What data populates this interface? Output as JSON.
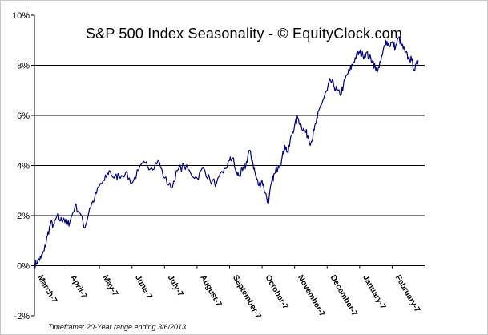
{
  "chart_data": {
    "type": "line",
    "title": "S&P 500 Index Seasonality - © EquityClock.com",
    "xlabel": "",
    "ylabel": "",
    "ylim": [
      -2,
      10
    ],
    "yticks": [
      -2,
      0,
      2,
      4,
      6,
      8,
      10
    ],
    "ytick_labels": [
      "-2%",
      "0%",
      "2%",
      "4%",
      "6%",
      "8%",
      "10%"
    ],
    "grid": "horizontal",
    "legend": "none",
    "xtick_labels": [
      "March-7",
      "April-7",
      "May-7",
      "June-7",
      "July-7",
      "August-7",
      "September-7",
      "October-7",
      "November-7",
      "December-7",
      "January-7",
      "February-7"
    ],
    "series": [
      {
        "name": "S&P 500 Index",
        "color": "#000080",
        "x": [
          0,
          0.1,
          0.2,
          0.3,
          0.4,
          0.5,
          0.6,
          0.7,
          0.8,
          0.9,
          1.0,
          1.1,
          1.25,
          1.4,
          1.55,
          1.7,
          1.85,
          2.0,
          2.15,
          2.3,
          2.45,
          2.6,
          2.8,
          3.0,
          3.2,
          3.4,
          3.6,
          3.8,
          4.0,
          4.2,
          4.4,
          4.6,
          4.8,
          5.0,
          5.2,
          5.4,
          5.6,
          5.8,
          6.0,
          6.1,
          6.2,
          6.3,
          6.4,
          6.5,
          6.6,
          6.7,
          6.8,
          6.9,
          7.0,
          7.1,
          7.2,
          7.3,
          7.4,
          7.5,
          7.6,
          7.7,
          7.8,
          7.9,
          8.0,
          8.1,
          8.2,
          8.3,
          8.4,
          8.5,
          8.6,
          8.7,
          8.8,
          8.9,
          9.0,
          9.1,
          9.2,
          9.3,
          9.4,
          9.5,
          9.6,
          9.7,
          9.8,
          9.9,
          10.0,
          10.1,
          10.2,
          10.3,
          10.4,
          10.5,
          10.6,
          10.7,
          10.8,
          10.9,
          11.0,
          11.1,
          11.2,
          11.3,
          11.4,
          11.5,
          11.6,
          11.7,
          11.8
        ],
        "values": [
          0.0,
          0.2,
          0.3,
          0.6,
          1.2,
          1.7,
          1.6,
          2.0,
          1.8,
          1.9,
          1.6,
          1.8,
          2.4,
          2.1,
          1.5,
          2.3,
          2.7,
          3.2,
          3.4,
          3.8,
          3.5,
          3.6,
          3.7,
          3.3,
          3.8,
          4.1,
          3.9,
          4.2,
          3.5,
          3.1,
          3.8,
          4.0,
          3.7,
          3.5,
          3.9,
          3.4,
          3.3,
          3.7,
          4.2,
          4.3,
          3.7,
          3.6,
          3.8,
          4.0,
          4.6,
          4.2,
          3.6,
          3.2,
          3.4,
          2.9,
          2.5,
          3.4,
          3.7,
          4.0,
          4.2,
          4.8,
          4.5,
          5.2,
          5.6,
          5.9,
          5.6,
          5.4,
          5.2,
          4.9,
          5.4,
          5.9,
          6.4,
          6.7,
          7.0,
          7.4,
          7.2,
          7.0,
          6.8,
          7.2,
          7.6,
          7.8,
          8.1,
          8.4,
          8.5,
          8.4,
          8.5,
          8.3,
          8.2,
          7.8,
          7.9,
          8.4,
          9.0,
          8.8,
          8.9,
          8.7,
          9.1,
          8.8,
          8.5,
          8.3,
          8.2,
          7.8,
          8.2
        ]
      }
    ]
  },
  "footnote": "Timeframe: 20-Year range ending 3/6/2013"
}
